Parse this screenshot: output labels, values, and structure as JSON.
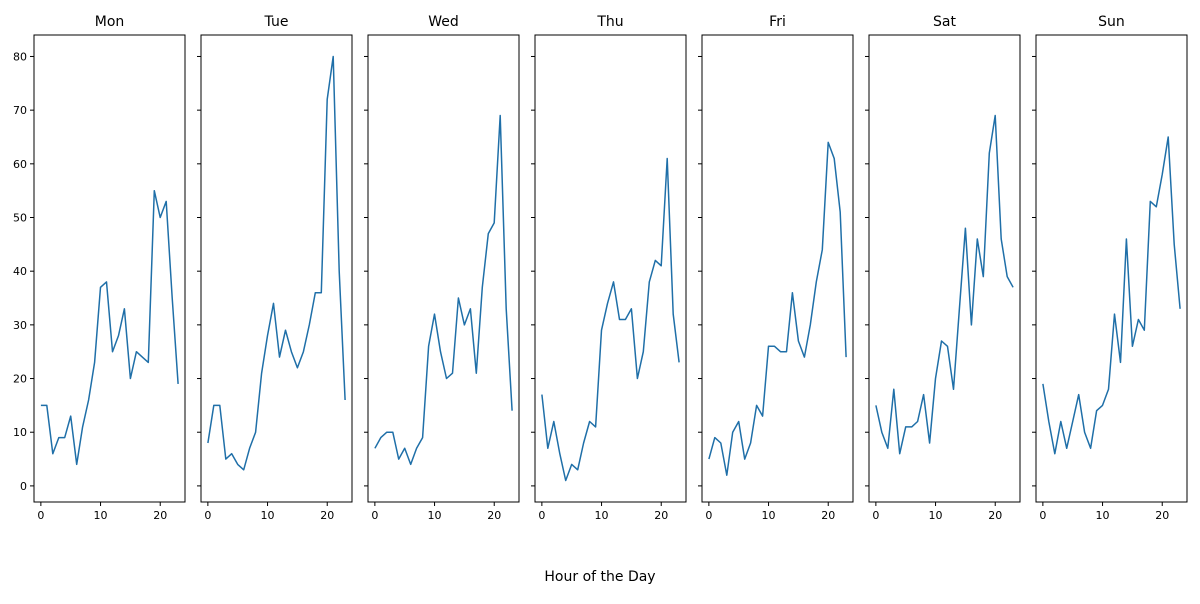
{
  "chart_data": {
    "type": "line",
    "layout": "small-multiples",
    "xlabel": "Hour of the Day",
    "ylabel": "",
    "x": [
      0,
      1,
      2,
      3,
      4,
      5,
      6,
      7,
      8,
      9,
      10,
      11,
      12,
      13,
      14,
      15,
      16,
      17,
      18,
      19,
      20,
      21,
      22,
      23
    ],
    "xlim": [
      -1.15,
      24.15
    ],
    "ylim": [
      -3,
      84
    ],
    "xticks": [
      0,
      10,
      20
    ],
    "yticks": [
      0,
      10,
      20,
      30,
      40,
      50,
      60,
      70,
      80
    ],
    "sharey": true,
    "grid": false,
    "line_color": "#1f6fa8",
    "panels": [
      {
        "title": "Mon",
        "values": [
          15,
          15,
          6,
          9,
          9,
          13,
          4,
          11,
          16,
          23,
          37,
          38,
          25,
          28,
          33,
          20,
          25,
          24,
          23,
          55,
          50,
          53,
          35,
          19
        ]
      },
      {
        "title": "Tue",
        "values": [
          8,
          15,
          15,
          5,
          6,
          4,
          3,
          7,
          10,
          21,
          28,
          34,
          24,
          29,
          25,
          22,
          25,
          30,
          36,
          36,
          72,
          80,
          40,
          16
        ]
      },
      {
        "title": "Wed",
        "values": [
          7,
          9,
          10,
          10,
          5,
          7,
          4,
          7,
          9,
          26,
          32,
          25,
          20,
          21,
          35,
          30,
          33,
          21,
          37,
          47,
          49,
          69,
          33,
          14
        ]
      },
      {
        "title": "Thu",
        "values": [
          17,
          7,
          12,
          6,
          1,
          4,
          3,
          8,
          12,
          11,
          29,
          34,
          38,
          31,
          31,
          33,
          20,
          25,
          38,
          42,
          41,
          61,
          32,
          23
        ]
      },
      {
        "title": "Fri",
        "values": [
          5,
          9,
          8,
          2,
          10,
          12,
          5,
          8,
          15,
          13,
          26,
          26,
          25,
          25,
          36,
          27,
          24,
          30,
          38,
          44,
          64,
          61,
          51,
          24
        ]
      },
      {
        "title": "Sat",
        "values": [
          15,
          10,
          7,
          18,
          6,
          11,
          11,
          12,
          17,
          8,
          20,
          27,
          26,
          18,
          33,
          48,
          30,
          46,
          39,
          62,
          69,
          46,
          39,
          37
        ]
      },
      {
        "title": "Sun",
        "values": [
          19,
          12,
          6,
          12,
          7,
          12,
          17,
          10,
          7,
          14,
          15,
          18,
          32,
          23,
          46,
          26,
          31,
          29,
          53,
          52,
          58,
          65,
          45,
          33
        ]
      }
    ]
  }
}
